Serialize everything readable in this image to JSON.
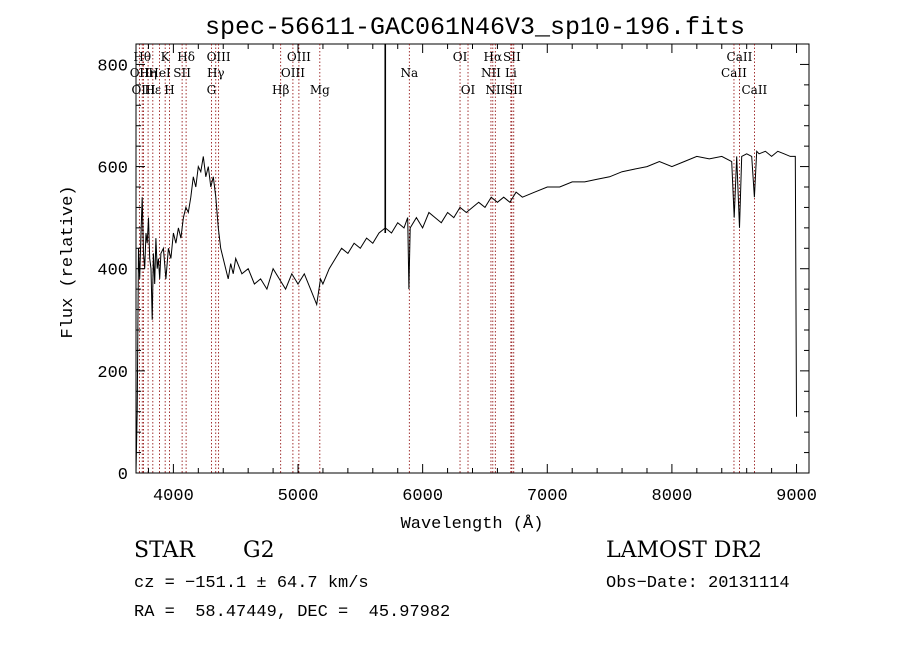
{
  "chart_data": {
    "type": "line",
    "title": "spec-56611-GAC061N46V3_sp10-196.fits",
    "xlabel": "Wavelength (Å)",
    "ylabel": "Flux (relative)",
    "xlim": [
      3700,
      9100
    ],
    "ylim": [
      0,
      840
    ],
    "xticks": [
      4000,
      5000,
      6000,
      7000,
      8000,
      9000
    ],
    "yticks": [
      0,
      200,
      400,
      600,
      800
    ],
    "grid": false,
    "line_color": "#000000",
    "marker_color": "#8b0000",
    "series": [
      {
        "x": [
          3700,
          3710,
          3720,
          3730,
          3740,
          3750,
          3760,
          3770,
          3780,
          3790,
          3800,
          3810,
          3820,
          3830,
          3840,
          3850,
          3860,
          3870,
          3880,
          3890,
          3900,
          3920,
          3940,
          3960,
          3980,
          4000,
          4020,
          4040,
          4060,
          4080,
          4100,
          4120,
          4140,
          4160,
          4180,
          4200,
          4220,
          4240,
          4260,
          4280,
          4300,
          4320,
          4340,
          4360,
          4380,
          4400,
          4420,
          4440,
          4460,
          4480,
          4500,
          4550,
          4600,
          4650,
          4700,
          4750,
          4800,
          4850,
          4900,
          4950,
          5000,
          5050,
          5100,
          5150,
          5180,
          5200,
          5250,
          5300,
          5350,
          5400,
          5450,
          5500,
          5550,
          5600,
          5650,
          5700,
          5750,
          5800,
          5850,
          5880,
          5890,
          5900,
          5950,
          6000,
          6050,
          6100,
          6150,
          6200,
          6250,
          6300,
          6350,
          6400,
          6450,
          6500,
          6550,
          6600,
          6650,
          6700,
          6750,
          6800,
          6900,
          7000,
          7100,
          7200,
          7300,
          7400,
          7500,
          7600,
          7700,
          7800,
          7900,
          8000,
          8100,
          8200,
          8300,
          8400,
          8480,
          8500,
          8520,
          8542,
          8560,
          8600,
          8640,
          8662,
          8680,
          8700,
          8750,
          8800,
          8850,
          8900,
          8950,
          8990,
          9000
        ],
        "y": [
          0,
          120,
          440,
          380,
          470,
          540,
          430,
          400,
          470,
          450,
          500,
          420,
          400,
          300,
          430,
          370,
          460,
          400,
          420,
          380,
          430,
          440,
          380,
          440,
          420,
          470,
          450,
          480,
          460,
          500,
          520,
          510,
          540,
          580,
          560,
          600,
          590,
          620,
          580,
          600,
          560,
          580,
          540,
          480,
          440,
          420,
          400,
          380,
          410,
          390,
          420,
          390,
          400,
          370,
          380,
          360,
          400,
          380,
          360,
          390,
          370,
          390,
          360,
          330,
          380,
          370,
          400,
          420,
          440,
          430,
          450,
          440,
          460,
          450,
          470,
          480,
          470,
          490,
          480,
          500,
          360,
          480,
          500,
          480,
          510,
          500,
          490,
          510,
          500,
          520,
          510,
          520,
          530,
          520,
          540,
          530,
          540,
          530,
          550,
          540,
          550,
          560,
          560,
          570,
          570,
          575,
          580,
          590,
          595,
          600,
          610,
          600,
          610,
          620,
          615,
          620,
          610,
          500,
          620,
          480,
          620,
          625,
          620,
          540,
          630,
          625,
          630,
          620,
          630,
          625,
          620,
          620,
          110
        ]
      }
    ],
    "lines": [
      {
        "label": "OII",
        "x": 3727,
        "row": 2
      },
      {
        "label": "Hθ",
        "x": 3750,
        "row": 1
      },
      {
        "label": "OIII",
        "x": 3760,
        "row": 3
      },
      {
        "label": "Hη",
        "x": 3797,
        "row": 2
      },
      {
        "label": "Hε",
        "x": 3835,
        "row": 3
      },
      {
        "label": "K",
        "x": 3934,
        "row": 1
      },
      {
        "label": "HeI",
        "x": 3889,
        "row": 2
      },
      {
        "label": "H",
        "x": 3969,
        "row": 3
      },
      {
        "label": "SII",
        "x": 4070,
        "row": 2
      },
      {
        "label": "Hδ",
        "x": 4102,
        "row": 1
      },
      {
        "label": "Hγ",
        "x": 4340,
        "row": 2
      },
      {
        "label": "G",
        "x": 4305,
        "row": 3
      },
      {
        "label": "OIII",
        "x": 4363,
        "row": 1
      },
      {
        "label": "Hβ",
        "x": 4861,
        "row": 3
      },
      {
        "label": "OIII",
        "x": 4959,
        "row": 2
      },
      {
        "label": "OIII",
        "x": 5007,
        "row": 1
      },
      {
        "label": "Mg",
        "x": 5175,
        "row": 3
      },
      {
        "label": "Na",
        "x": 5893,
        "row": 2
      },
      {
        "label": "OI",
        "x": 6300,
        "row": 1
      },
      {
        "label": "OI",
        "x": 6364,
        "row": 3
      },
      {
        "label": "NII",
        "x": 6548,
        "row": 2
      },
      {
        "label": "Hα",
        "x": 6563,
        "row": 1
      },
      {
        "label": "NII",
        "x": 6583,
        "row": 3
      },
      {
        "label": "SII",
        "x": 6716,
        "row": 1
      },
      {
        "label": "Li",
        "x": 6708,
        "row": 2
      },
      {
        "label": "SII",
        "x": 6731,
        "row": 3
      },
      {
        "label": "CaII",
        "x": 8498,
        "row": 2
      },
      {
        "label": "CaII",
        "x": 8542,
        "row": 1
      },
      {
        "label": "CaII",
        "x": 8662,
        "row": 3
      }
    ],
    "vertical_marker_x": 5700
  },
  "footer": {
    "object_class": "STAR",
    "subclass": "G2",
    "survey": "LAMOST DR2",
    "redshift_text": "cz = −151.1 ± 64.7 km/s",
    "obs_date_text": "Obs−Date: 20131114",
    "coords_text": "RA =  58.47449, DEC =  45.97982"
  }
}
